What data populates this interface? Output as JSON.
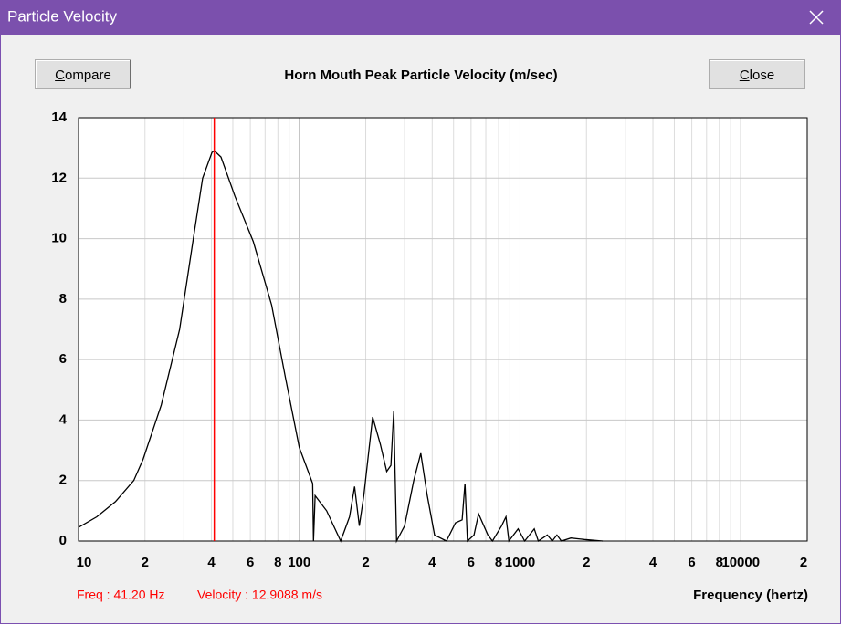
{
  "window": {
    "title": "Particle Velocity",
    "buttons": [
      "Compare",
      "Close"
    ]
  },
  "chart_data": {
    "type": "line",
    "title": "Horn Mouth Peak Particle Velocity (m/sec)",
    "x_label": "Frequency (hertz)",
    "x_scale": "log",
    "x": [
      10,
      12.1,
      14.7,
      17.8,
      19.6,
      23.7,
      28.7,
      33.1,
      36.5,
      40.2,
      41.2,
      44.2,
      51.1,
      61.9,
      75,
      86.6,
      100,
      115,
      116,
      118,
      133,
      154,
      169,
      178,
      187,
      196,
      215,
      233,
      249,
      260,
      268,
      276,
      300,
      330,
      355,
      380,
      410,
      464,
      510,
      547,
      563,
      578,
      619,
      649,
      715,
      750,
      825,
      864,
      890,
      980,
      1050,
      1160,
      1210,
      1330,
      1400,
      1470,
      1540,
      1700,
      1960,
      2370
    ],
    "series": [
      {
        "color": "#000000",
        "values": [
          0.45,
          0.8,
          1.3,
          2.0,
          2.7,
          4.5,
          7.0,
          10.0,
          12.0,
          12.85,
          12.91,
          12.7,
          11.4,
          9.9,
          7.8,
          5.4,
          3.1,
          1.9,
          0,
          1.5,
          1.0,
          0,
          0.8,
          1.8,
          0.5,
          1.5,
          4.1,
          3.2,
          2.3,
          2.5,
          4.3,
          0,
          0.5,
          2.0,
          2.9,
          1.5,
          0.2,
          0,
          0.6,
          0.7,
          1.9,
          0,
          0.2,
          0.9,
          0.2,
          0,
          0.5,
          0.8,
          0,
          0.4,
          0,
          0.4,
          0,
          0.2,
          0,
          0.2,
          0,
          0.1,
          0.05,
          0
        ]
      }
    ],
    "xlim": [
      10,
      20000
    ],
    "ylim": [
      0,
      14
    ],
    "xticks": [
      10,
      {
        "value": 20,
        "label": "2"
      },
      {
        "value": 40,
        "label": "4"
      },
      {
        "value": 60,
        "label": "6"
      },
      {
        "value": 80,
        "label": "8"
      },
      100,
      {
        "value": 200,
        "label": "2"
      },
      {
        "value": 400,
        "label": "4"
      },
      {
        "value": 600,
        "label": "6"
      },
      {
        "value": 800,
        "label": "8"
      },
      1000,
      {
        "value": 2000,
        "label": "2"
      },
      {
        "value": 4000,
        "label": "4"
      },
      {
        "value": 6000,
        "label": "6"
      },
      {
        "value": 8000,
        "label": "8"
      },
      10000,
      {
        "value": 20000,
        "label": "2"
      }
    ],
    "xminor": [
      30,
      50,
      70,
      90,
      300,
      500,
      700,
      900,
      3000,
      5000,
      7000,
      9000
    ],
    "yticks": [
      0,
      2,
      4,
      6,
      8,
      10,
      12,
      14
    ],
    "grid": true,
    "cursor": {
      "x": 41.2,
      "color": "#ff0000",
      "freq_label": "Freq : 41.20 Hz",
      "velocity_label": "Velocity : 12.9088 m/s"
    }
  }
}
